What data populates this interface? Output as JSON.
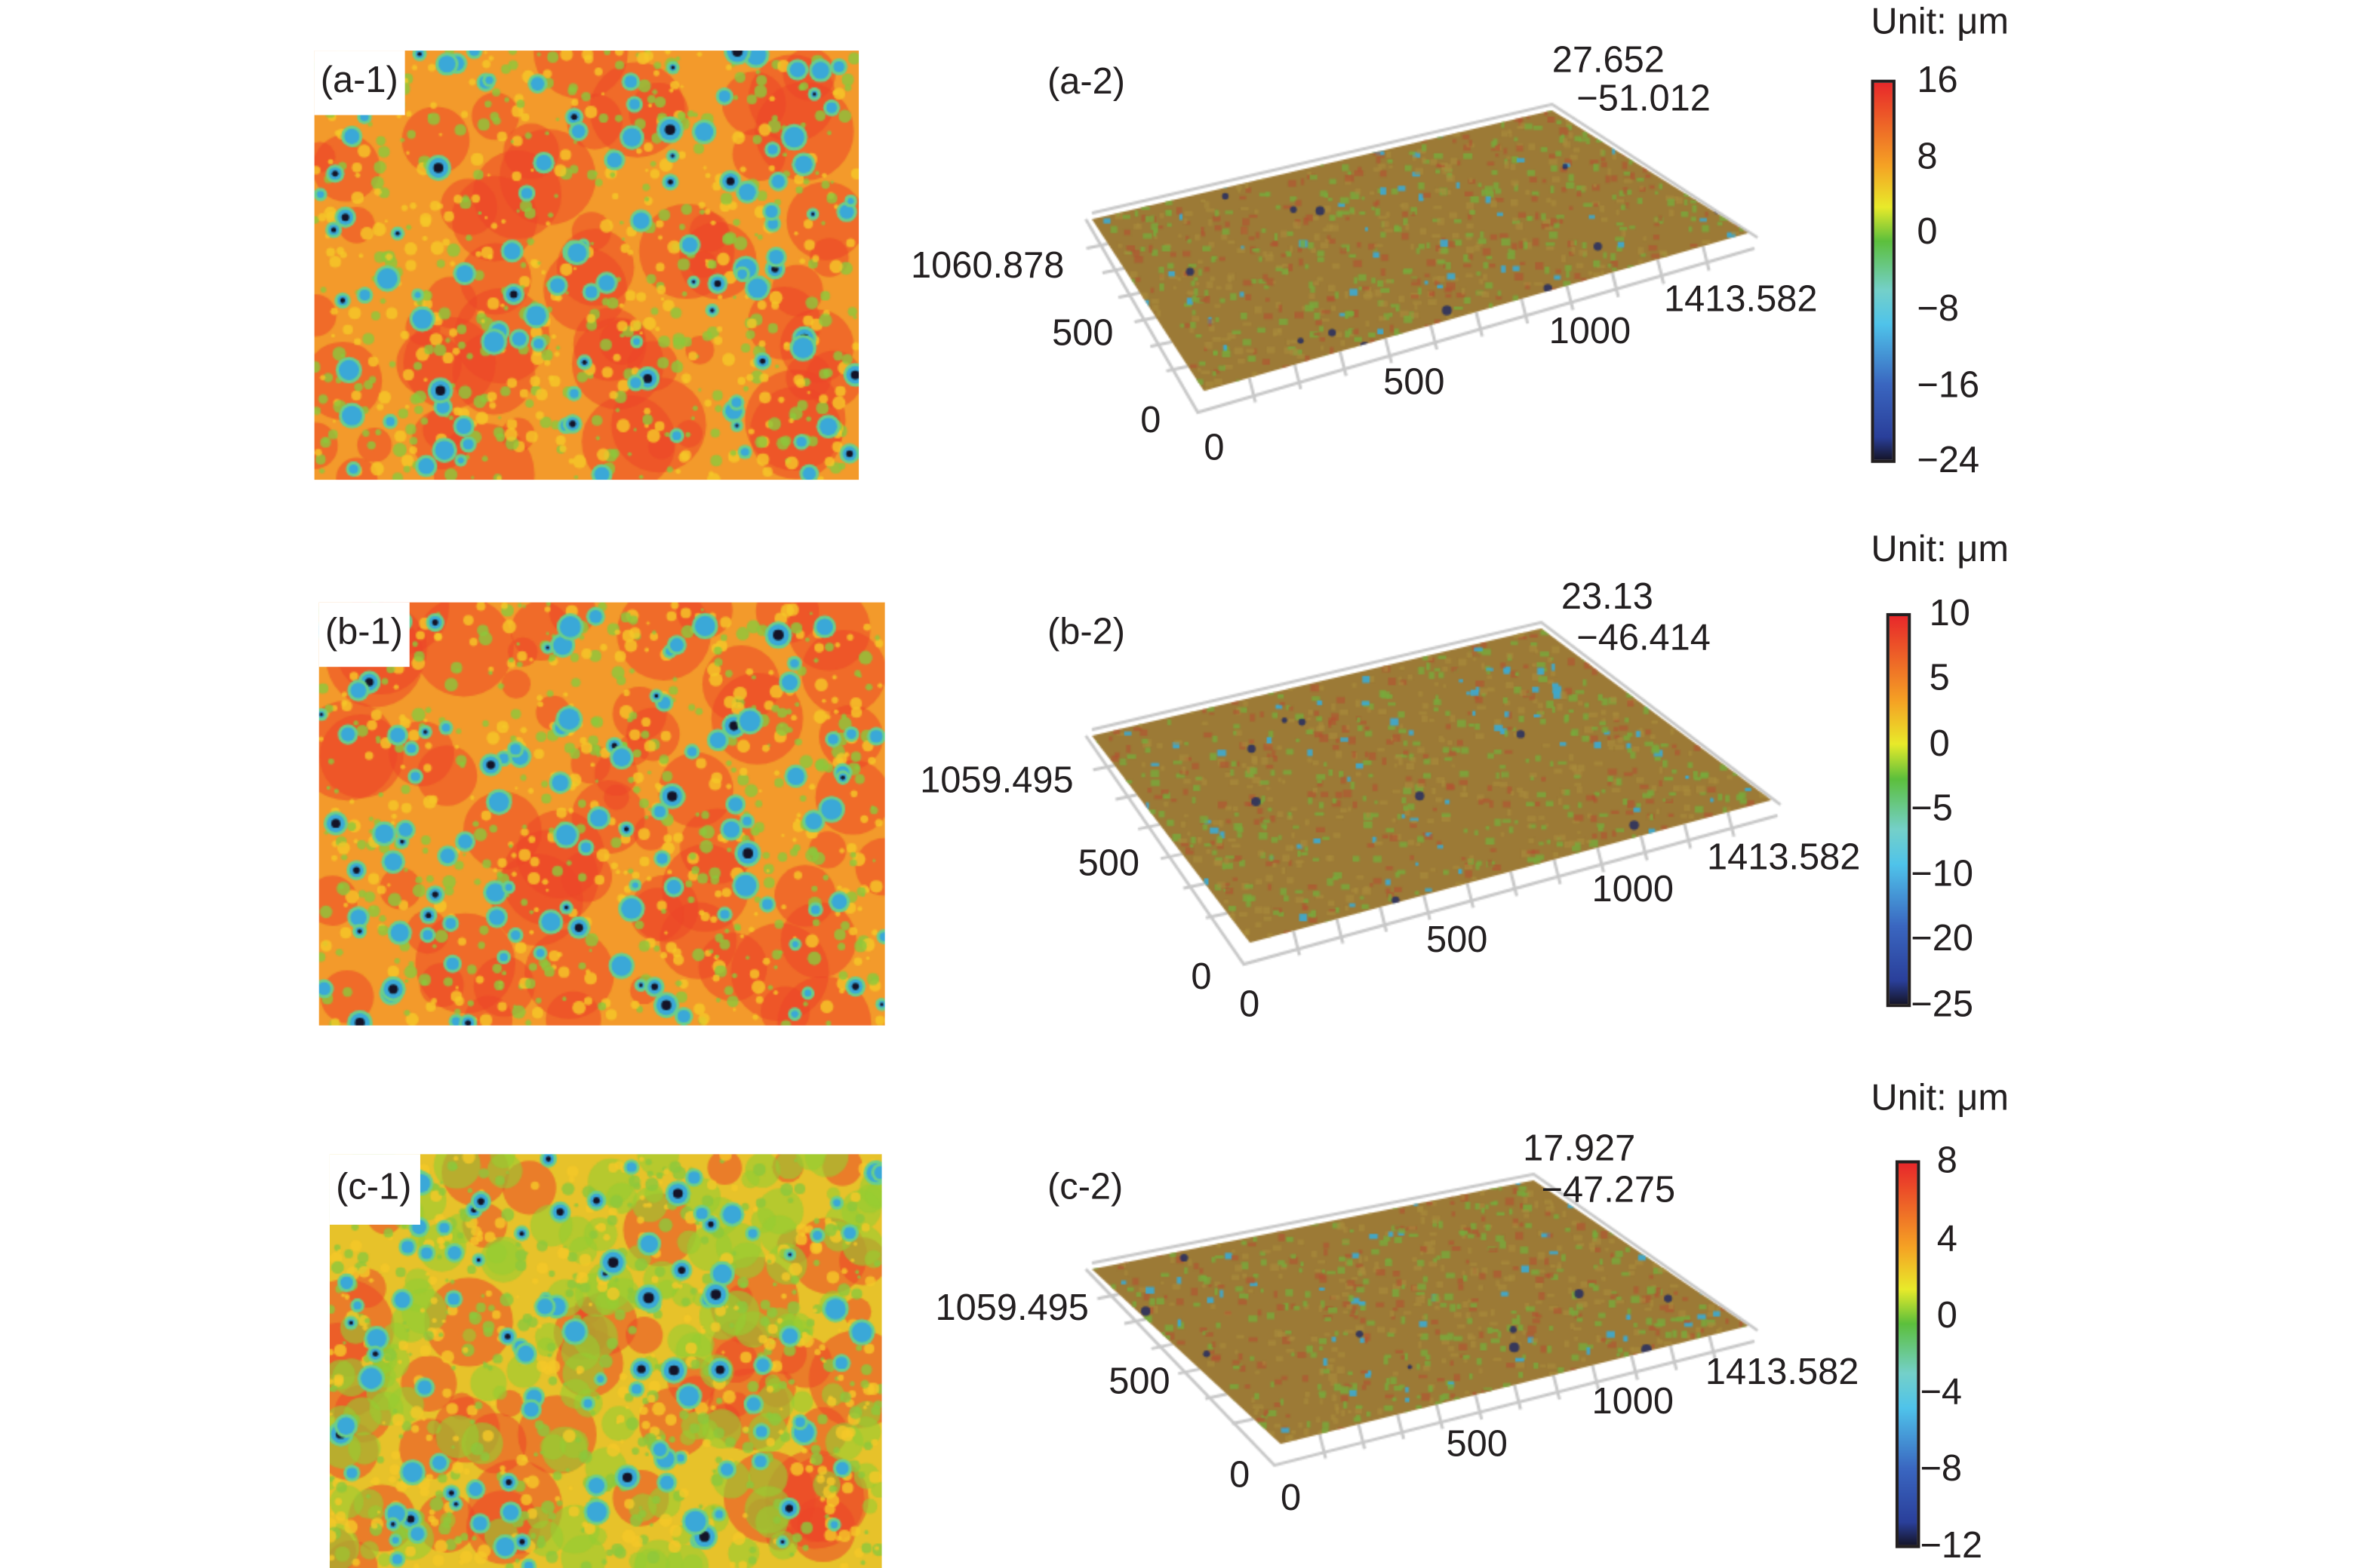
{
  "unit_label": "Unit: μm",
  "panels": {
    "a1": {
      "label": "(a-1)"
    },
    "a2": {
      "label": "(a-2)",
      "z_max": "27.652",
      "z_min": "−51.012",
      "y_max": "1060.878",
      "y_mid": "500",
      "y_zero": "0",
      "x_zero": "0",
      "x_500": "500",
      "x_1000": "1000",
      "x_max": "1413.582"
    },
    "b1": {
      "label": "(b-1)"
    },
    "b2": {
      "label": "(b-2)",
      "z_max": "23.13",
      "z_min": "−46.414",
      "y_max": "1059.495",
      "y_mid": "500",
      "y_zero": "0",
      "x_zero": "0",
      "x_500": "500",
      "x_1000": "1000",
      "x_max": "1413.582"
    },
    "c1": {
      "label": "(c-1)"
    },
    "c2": {
      "label": "(c-2)",
      "z_max": "17.927",
      "z_min": "−47.275",
      "y_max": "1059.495",
      "y_mid": "500",
      "y_zero": "0",
      "x_zero": "0",
      "x_500": "500",
      "x_1000": "1000",
      "x_max": "1413.582"
    }
  },
  "colorbars": {
    "a": [
      "16",
      "8",
      "0",
      "−8",
      "−16",
      "−24"
    ],
    "b": [
      "10",
      "5",
      "0",
      "−5",
      "−10",
      "−20",
      "−25"
    ],
    "c": [
      "8",
      "4",
      "0",
      "−4",
      "−8",
      "−12"
    ]
  },
  "chart_data": [
    {
      "type": "heatmap",
      "title": "(a-1)",
      "colorbar_ticks": [
        16,
        8,
        0,
        -8,
        -16,
        -24
      ],
      "unit": "μm",
      "zlim": [
        -24,
        16
      ]
    },
    {
      "type": "heatmap",
      "title": "(a-2)",
      "view": "3d-surface",
      "x_ticks": [
        0,
        500,
        1000,
        1413.582
      ],
      "y_ticks": [
        0,
        500,
        1060.878
      ],
      "z_range": [
        -51.012,
        27.652
      ]
    },
    {
      "type": "heatmap",
      "title": "(b-1)",
      "colorbar_ticks": [
        10,
        5,
        0,
        -5,
        -10,
        -20,
        -25
      ],
      "unit": "μm",
      "zlim": [
        -25,
        10
      ]
    },
    {
      "type": "heatmap",
      "title": "(b-2)",
      "view": "3d-surface",
      "x_ticks": [
        0,
        500,
        1000,
        1413.582
      ],
      "y_ticks": [
        0,
        500,
        1059.495
      ],
      "z_range": [
        -46.414,
        23.13
      ]
    },
    {
      "type": "heatmap",
      "title": "(c-1)",
      "colorbar_ticks": [
        8,
        4,
        0,
        -4,
        -8,
        -12
      ],
      "unit": "μm",
      "zlim": [
        -12,
        8
      ]
    },
    {
      "type": "heatmap",
      "title": "(c-2)",
      "view": "3d-surface",
      "x_ticks": [
        0,
        500,
        1000,
        1413.582
      ],
      "y_ticks": [
        0,
        500,
        1059.495
      ],
      "z_range": [
        -47.275,
        17.927
      ]
    }
  ],
  "colors": {
    "text": "#231f20",
    "map_base": "#f39a2b",
    "surface_base": "#9c7a36"
  }
}
